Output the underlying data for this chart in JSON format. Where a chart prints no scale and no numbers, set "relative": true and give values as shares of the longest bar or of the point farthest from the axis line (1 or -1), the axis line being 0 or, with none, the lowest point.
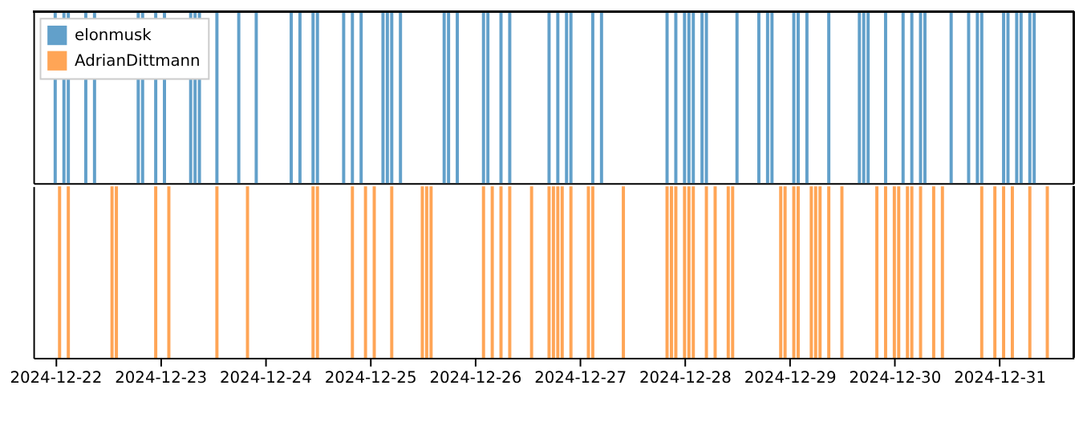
{
  "chart_data": [
    {
      "type": "bar",
      "relative": true,
      "legend": "top left",
      "grid": false,
      "tick_labels": false,
      "xlim": [
        "2024-12-21T19:00",
        "2024-12-31T17:00"
      ],
      "series": [
        {
          "name": "elonmusk",
          "color": "#1f77b4",
          "x": [
            "2024-12-22T00:00",
            "2024-12-22T02:00",
            "2024-12-22T03:00",
            "2024-12-22T07:00",
            "2024-12-22T09:00",
            "2024-12-22T19:00",
            "2024-12-22T20:00",
            "2024-12-22T23:00",
            "2024-12-23T01:00",
            "2024-12-23T07:00",
            "2024-12-23T08:00",
            "2024-12-23T09:00",
            "2024-12-23T13:00",
            "2024-12-23T18:00",
            "2024-12-23T22:00",
            "2024-12-24T06:00",
            "2024-12-24T08:00",
            "2024-12-24T11:00",
            "2024-12-24T12:00",
            "2024-12-24T18:00",
            "2024-12-24T20:00",
            "2024-12-24T22:00",
            "2024-12-25T03:00",
            "2024-12-25T04:00",
            "2024-12-25T05:00",
            "2024-12-25T07:00",
            "2024-12-25T17:00",
            "2024-12-25T18:00",
            "2024-12-25T20:00",
            "2024-12-26T02:00",
            "2024-12-26T03:00",
            "2024-12-26T06:00",
            "2024-12-26T08:00",
            "2024-12-26T17:00",
            "2024-12-26T19:00",
            "2024-12-26T21:00",
            "2024-12-26T22:00",
            "2024-12-27T03:00",
            "2024-12-27T05:00",
            "2024-12-27T20:00",
            "2024-12-27T22:00",
            "2024-12-28T00:00",
            "2024-12-28T01:00",
            "2024-12-28T02:00",
            "2024-12-28T04:00",
            "2024-12-28T05:00",
            "2024-12-28T12:00",
            "2024-12-28T17:00",
            "2024-12-28T19:00",
            "2024-12-28T20:00",
            "2024-12-29T01:00",
            "2024-12-29T02:00",
            "2024-12-29T04:00",
            "2024-12-29T09:00",
            "2024-12-29T16:00",
            "2024-12-29T17:00",
            "2024-12-29T18:00",
            "2024-12-29T22:00",
            "2024-12-30T02:00",
            "2024-12-30T04:00",
            "2024-12-30T06:00",
            "2024-12-30T07:00",
            "2024-12-30T13:00",
            "2024-12-30T17:00",
            "2024-12-30T19:00",
            "2024-12-30T20:00",
            "2024-12-31T01:00",
            "2024-12-31T02:00",
            "2024-12-31T04:00",
            "2024-12-31T05:00",
            "2024-12-31T07:00",
            "2024-12-31T08:00"
          ],
          "values": [
            1,
            1,
            1,
            1,
            1,
            1,
            1,
            1,
            1,
            1,
            1,
            1,
            1,
            1,
            1,
            1,
            1,
            1,
            1,
            1,
            1,
            1,
            1,
            1,
            1,
            1,
            1,
            1,
            1,
            1,
            1,
            1,
            1,
            1,
            1,
            1,
            1,
            1,
            1,
            1,
            1,
            1,
            1,
            1,
            1,
            1,
            1,
            1,
            1,
            1,
            1,
            1,
            1,
            1,
            1,
            1,
            1,
            1,
            1,
            1,
            1,
            1,
            1,
            1,
            1,
            1,
            1,
            1,
            1,
            1,
            1,
            1
          ]
        }
      ]
    },
    {
      "type": "bar",
      "relative": true,
      "legend": "top left",
      "grid": false,
      "tick_labels": "x",
      "xlim": [
        "2024-12-21T19:00",
        "2024-12-31T17:00"
      ],
      "xticks": [
        "2024-12-22",
        "2024-12-23",
        "2024-12-24",
        "2024-12-25",
        "2024-12-26",
        "2024-12-27",
        "2024-12-28",
        "2024-12-29",
        "2024-12-30",
        "2024-12-31"
      ],
      "series": [
        {
          "name": "AdrianDittmann",
          "color": "#ff7f0e",
          "x": [
            "2024-12-22T01:00",
            "2024-12-22T03:00",
            "2024-12-22T13:00",
            "2024-12-22T14:00",
            "2024-12-22T23:00",
            "2024-12-23T02:00",
            "2024-12-23T13:00",
            "2024-12-23T20:00",
            "2024-12-24T11:00",
            "2024-12-24T12:00",
            "2024-12-24T20:00",
            "2024-12-24T23:00",
            "2024-12-25T01:00",
            "2024-12-25T05:00",
            "2024-12-25T12:00",
            "2024-12-25T13:00",
            "2024-12-25T14:00",
            "2024-12-26T02:00",
            "2024-12-26T04:00",
            "2024-12-26T06:00",
            "2024-12-26T08:00",
            "2024-12-26T13:00",
            "2024-12-26T17:00",
            "2024-12-26T18:00",
            "2024-12-26T19:00",
            "2024-12-26T20:00",
            "2024-12-26T22:00",
            "2024-12-27T02:00",
            "2024-12-27T03:00",
            "2024-12-27T10:00",
            "2024-12-27T20:00",
            "2024-12-27T21:00",
            "2024-12-27T22:00",
            "2024-12-28T00:00",
            "2024-12-28T01:00",
            "2024-12-28T02:00",
            "2024-12-28T05:00",
            "2024-12-28T07:00",
            "2024-12-28T10:00",
            "2024-12-28T11:00",
            "2024-12-28T22:00",
            "2024-12-28T23:00",
            "2024-12-29T01:00",
            "2024-12-29T02:00",
            "2024-12-29T05:00",
            "2024-12-29T06:00",
            "2024-12-29T07:00",
            "2024-12-29T09:00",
            "2024-12-29T12:00",
            "2024-12-29T20:00",
            "2024-12-29T22:00",
            "2024-12-30T00:00",
            "2024-12-30T01:00",
            "2024-12-30T03:00",
            "2024-12-30T04:00",
            "2024-12-30T06:00",
            "2024-12-30T09:00",
            "2024-12-30T11:00",
            "2024-12-30T20:00",
            "2024-12-30T23:00",
            "2024-12-31T01:00",
            "2024-12-31T03:00",
            "2024-12-31T07:00",
            "2024-12-31T11:00"
          ],
          "values": [
            1,
            1,
            1,
            1,
            1,
            1,
            1,
            1,
            1,
            1,
            1,
            1,
            1,
            1,
            1,
            1,
            1,
            1,
            1,
            1,
            1,
            1,
            1,
            1,
            1,
            1,
            1,
            1,
            1,
            1,
            1,
            1,
            1,
            1,
            1,
            1,
            1,
            1,
            1,
            1,
            1,
            1,
            1,
            1,
            1,
            1,
            1,
            1,
            1,
            1,
            1,
            1,
            1,
            1,
            1,
            1,
            1,
            1,
            1,
            1,
            1,
            1,
            1,
            1
          ]
        }
      ]
    }
  ]
}
